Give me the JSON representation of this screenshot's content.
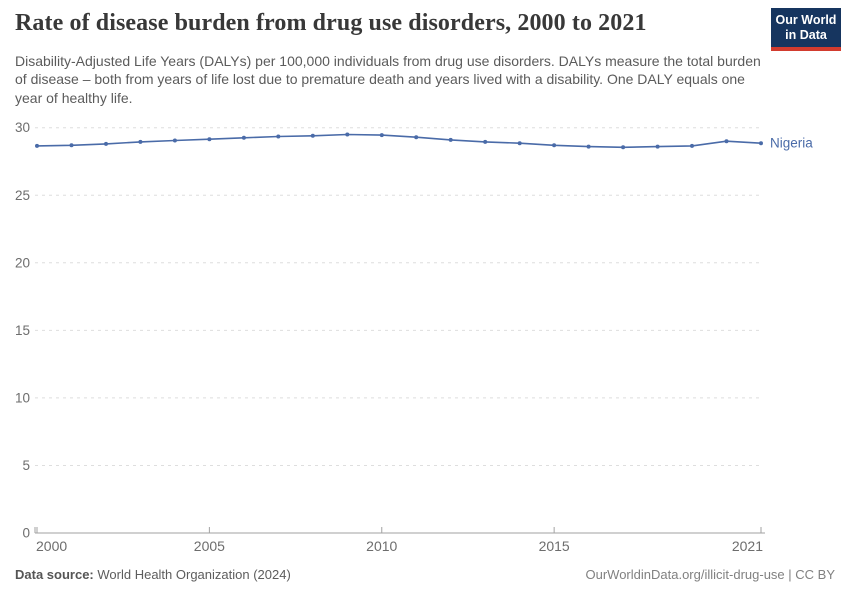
{
  "header": {
    "title": "Rate of disease burden from drug use disorders, 2000 to 2021",
    "subtitle": "Disability-Adjusted Life Years (DALYs) per 100,000 individuals from drug use disorders. DALYs measure the total burden of disease – both from years of life lost due to premature death and years lived with a disability. One DALY equals one year of healthy life.",
    "logo": {
      "line1": "Our World",
      "line2": "in Data",
      "bg_color": "#16355f",
      "accent_color": "#d23b2e"
    }
  },
  "chart_data": {
    "type": "line",
    "title": "Rate of disease burden from drug use disorders, 2000 to 2021",
    "xlabel": "",
    "ylabel": "DALYs per 100,000 individuals",
    "xlim": [
      2000,
      2021
    ],
    "ylim": [
      0,
      30
    ],
    "xticks": [
      2000,
      2005,
      2010,
      2015,
      2021
    ],
    "yticks": [
      0,
      5,
      10,
      15,
      20,
      25,
      30
    ],
    "grid": "horizontal-dashed",
    "grid_color": "#dedede",
    "axis_color": "#a2a2a2",
    "tick_label_color": "#6d6d6d",
    "legend_position": "end-of-line-label",
    "x": [
      2000,
      2001,
      2002,
      2003,
      2004,
      2005,
      2006,
      2007,
      2008,
      2009,
      2010,
      2011,
      2012,
      2013,
      2014,
      2015,
      2016,
      2017,
      2018,
      2019,
      2020,
      2021
    ],
    "series": [
      {
        "name": "Nigeria",
        "color": "#4a6ba8",
        "values": [
          28.65,
          28.7,
          28.8,
          28.95,
          29.05,
          29.15,
          29.25,
          29.35,
          29.4,
          29.5,
          29.45,
          29.3,
          29.1,
          28.95,
          28.85,
          28.7,
          28.6,
          28.55,
          28.6,
          28.65,
          29.0,
          28.85
        ]
      }
    ]
  },
  "footer": {
    "datasource_label": "Data source:",
    "datasource_value": "World Health Organization (2024)",
    "rights": "OurWorldinData.org/illicit-drug-use | CC BY"
  }
}
